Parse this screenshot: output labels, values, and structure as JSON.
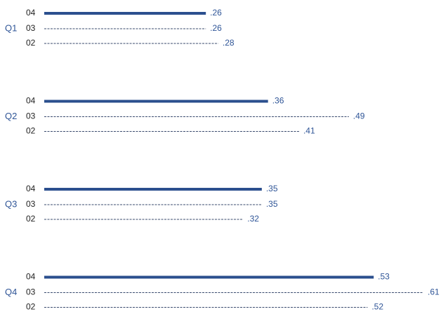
{
  "chart_data": {
    "type": "bar",
    "orientation": "horizontal",
    "categories": [
      "Q1",
      "Q2",
      "Q3",
      "Q4"
    ],
    "series": [
      {
        "name": "04",
        "color": "#2b4f8e",
        "style": "solid",
        "values": [
          0.26,
          0.36,
          0.35,
          0.53
        ],
        "value_labels": [
          ".26",
          ".36",
          ".35",
          ".53"
        ]
      },
      {
        "name": "03",
        "color": "#3a4b6e",
        "style": "dashed",
        "values": [
          0.26,
          0.49,
          0.35,
          0.61
        ],
        "value_labels": [
          ".26",
          ".49",
          ".35",
          ".61"
        ]
      },
      {
        "name": "02",
        "color": "#3a4b6e",
        "style": "dashed",
        "values": [
          0.28,
          0.41,
          0.32,
          0.52
        ],
        "value_labels": [
          ".28",
          ".41",
          ".32",
          ".52"
        ]
      }
    ]
  }
}
